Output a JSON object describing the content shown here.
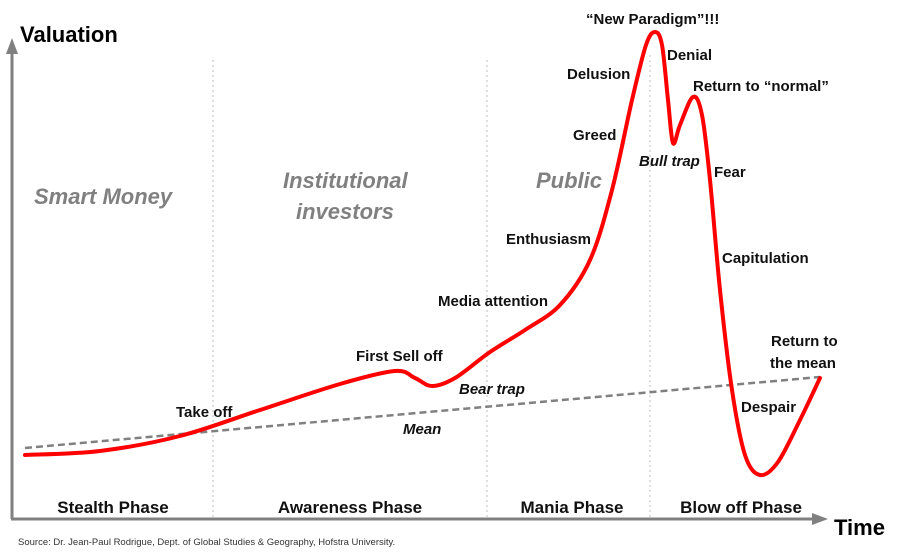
{
  "axes": {
    "y_label": "Valuation",
    "x_label": "Time"
  },
  "groups": {
    "smart_money": "Smart Money",
    "institutional_1": "Institutional",
    "institutional_2": "investors",
    "public": "Public"
  },
  "phases": [
    "Stealth Phase",
    "Awareness Phase",
    "Mania Phase",
    "Blow off Phase"
  ],
  "annotations": {
    "take_off": "Take off",
    "first_sell_off": "First Sell off",
    "bear_trap": "Bear trap",
    "mean": "Mean",
    "media_attention": "Media attention",
    "enthusiasm": "Enthusiasm",
    "greed": "Greed",
    "delusion": "Delusion",
    "new_paradigm": "“New Paradigm”!!!",
    "denial": "Denial",
    "return_to_normal": "Return to “normal”",
    "bull_trap": "Bull trap",
    "fear": "Fear",
    "capitulation": "Capitulation",
    "return_to_mean_1": "Return to",
    "return_to_mean_2": "the mean",
    "despair": "Despair"
  },
  "source": "Source: Dr. Jean-Paul Rodrigue, Dept. of Global Studies & Geography, Hofstra University.",
  "colors": {
    "curve": "#ff0000",
    "mean_line": "#808080",
    "axis": "#808080",
    "group_text": "#808080"
  }
}
